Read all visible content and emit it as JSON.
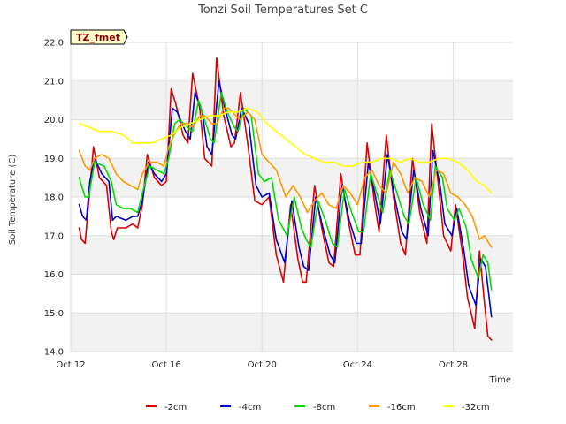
{
  "chart_data": {
    "type": "line",
    "title": "Tonzi Soil Temperatures Set C",
    "xlabel": "Time",
    "ylabel": "Soil Temperature (C)",
    "badge": "TZ_fmet",
    "xlim": [
      12,
      30.5
    ],
    "ylim": [
      14.0,
      22.0
    ],
    "x_ticks": [
      {
        "x": 12,
        "label": "Oct 12"
      },
      {
        "x": 16,
        "label": "Oct 16"
      },
      {
        "x": 20,
        "label": "Oct 20"
      },
      {
        "x": 24,
        "label": "Oct 24"
      },
      {
        "x": 28,
        "label": "Oct 28"
      }
    ],
    "y_ticks": [
      {
        "y": 14.0,
        "label": "14.0"
      },
      {
        "y": 15.0,
        "label": "15.0"
      },
      {
        "y": 16.0,
        "label": "16.0"
      },
      {
        "y": 17.0,
        "label": "17.0"
      },
      {
        "y": 18.0,
        "label": "18.0"
      },
      {
        "y": 19.0,
        "label": "19.0"
      },
      {
        "y": 20.0,
        "label": "20.0"
      },
      {
        "y": 21.0,
        "label": "21.0"
      },
      {
        "y": 22.0,
        "label": "22.0"
      }
    ],
    "legend_position": "bottom-center",
    "series": [
      {
        "name": "-2cm",
        "color": "#dd0000",
        "x": [
          12.35,
          12.45,
          12.6,
          12.8,
          12.95,
          13.2,
          13.5,
          13.7,
          13.8,
          13.95,
          14.3,
          14.6,
          14.8,
          15.0,
          15.2,
          15.5,
          15.8,
          16.0,
          16.2,
          16.4,
          16.7,
          16.9,
          17.1,
          17.4,
          17.6,
          17.9,
          18.1,
          18.4,
          18.7,
          18.85,
          19.1,
          19.4,
          19.7,
          20.0,
          20.3,
          20.6,
          20.9,
          21.2,
          21.5,
          21.7,
          21.85,
          22.2,
          22.5,
          22.8,
          23.0,
          23.3,
          23.6,
          23.9,
          24.1,
          24.4,
          24.7,
          24.9,
          25.2,
          25.5,
          25.8,
          26.0,
          26.3,
          26.6,
          26.9,
          27.1,
          27.4,
          27.6,
          27.9,
          28.1,
          28.4,
          28.6,
          28.9,
          29.1,
          29.3,
          29.45,
          29.6
        ],
        "y": [
          17.2,
          16.9,
          16.8,
          18.2,
          19.3,
          18.5,
          18.3,
          17.1,
          16.9,
          17.2,
          17.2,
          17.3,
          17.2,
          17.8,
          19.1,
          18.5,
          18.3,
          18.4,
          20.8,
          20.4,
          19.6,
          19.4,
          21.2,
          20.3,
          19.0,
          18.8,
          21.6,
          20.1,
          19.3,
          19.4,
          20.7,
          19.4,
          17.9,
          17.8,
          18.0,
          16.5,
          15.8,
          17.8,
          16.4,
          15.8,
          15.8,
          18.3,
          17.2,
          16.3,
          16.2,
          18.6,
          17.4,
          16.5,
          16.5,
          19.4,
          17.9,
          17.1,
          19.6,
          18.0,
          16.8,
          16.5,
          19.0,
          17.6,
          16.8,
          19.9,
          18.2,
          17.0,
          16.6,
          17.8,
          16.5,
          15.4,
          14.6,
          16.6,
          15.3,
          14.4,
          14.3
        ]
      },
      {
        "name": "-4cm",
        "color": "#0000cc",
        "x": [
          12.35,
          12.5,
          12.65,
          12.8,
          13.0,
          13.3,
          13.6,
          13.75,
          13.9,
          14.3,
          14.6,
          14.8,
          15.0,
          15.25,
          15.5,
          15.8,
          16.0,
          16.25,
          16.45,
          16.8,
          17.0,
          17.2,
          17.5,
          17.7,
          17.9,
          18.2,
          18.45,
          18.75,
          18.9,
          19.15,
          19.45,
          19.75,
          20.0,
          20.3,
          20.6,
          20.95,
          21.25,
          21.55,
          21.75,
          21.95,
          22.25,
          22.55,
          22.85,
          23.05,
          23.35,
          23.65,
          23.95,
          24.15,
          24.45,
          24.75,
          24.95,
          25.25,
          25.55,
          25.85,
          26.05,
          26.35,
          26.65,
          26.95,
          27.15,
          27.45,
          27.65,
          27.95,
          28.15,
          28.45,
          28.65,
          28.95,
          29.15,
          29.35,
          29.6
        ],
        "y": [
          17.8,
          17.5,
          17.4,
          18.4,
          19.0,
          18.6,
          18.4,
          17.4,
          17.5,
          17.4,
          17.5,
          17.5,
          17.9,
          18.9,
          18.6,
          18.4,
          18.6,
          20.3,
          20.2,
          19.7,
          19.5,
          20.7,
          20.2,
          19.3,
          19.1,
          21.0,
          20.3,
          19.6,
          19.5,
          20.3,
          19.9,
          18.3,
          18.0,
          18.1,
          16.9,
          16.3,
          17.9,
          16.7,
          16.2,
          16.1,
          18.0,
          17.2,
          16.5,
          16.3,
          18.3,
          17.4,
          16.8,
          16.8,
          18.9,
          18.0,
          17.3,
          19.1,
          18.0,
          17.1,
          16.9,
          18.7,
          17.7,
          17.0,
          19.2,
          18.3,
          17.3,
          17.0,
          17.7,
          16.6,
          15.7,
          15.2,
          16.4,
          16.2,
          14.9
        ]
      },
      {
        "name": "-8cm",
        "color": "#00dd00",
        "x": [
          12.35,
          12.6,
          12.75,
          13.0,
          13.4,
          13.7,
          13.9,
          14.2,
          14.5,
          14.8,
          15.0,
          15.3,
          15.6,
          15.9,
          16.1,
          16.35,
          16.55,
          16.9,
          17.1,
          17.35,
          17.6,
          17.85,
          18.0,
          18.3,
          18.55,
          18.85,
          19.0,
          19.25,
          19.55,
          19.85,
          20.1,
          20.4,
          20.7,
          21.05,
          21.35,
          21.65,
          21.85,
          22.05,
          22.35,
          22.65,
          22.95,
          23.15,
          23.45,
          23.75,
          24.05,
          24.25,
          24.55,
          24.85,
          25.05,
          25.35,
          25.65,
          25.95,
          26.15,
          26.45,
          26.75,
          27.05,
          27.25,
          27.55,
          27.75,
          28.05,
          28.25,
          28.55,
          28.75,
          29.05,
          29.25,
          29.45,
          29.6
        ],
        "y": [
          18.5,
          18.0,
          18.0,
          18.9,
          18.8,
          18.4,
          17.8,
          17.7,
          17.7,
          17.6,
          18.1,
          18.8,
          18.7,
          18.6,
          19.0,
          19.9,
          20.0,
          19.8,
          19.7,
          20.5,
          20.0,
          19.5,
          19.4,
          20.7,
          20.2,
          19.8,
          19.7,
          20.3,
          20.1,
          18.6,
          18.4,
          18.5,
          17.4,
          17.0,
          18.0,
          17.2,
          16.9,
          16.7,
          17.9,
          17.4,
          16.8,
          16.7,
          18.2,
          17.6,
          17.1,
          17.1,
          18.6,
          18.0,
          17.6,
          18.7,
          18.1,
          17.5,
          17.3,
          18.5,
          17.8,
          17.4,
          18.8,
          18.5,
          17.7,
          17.4,
          17.7,
          17.2,
          16.4,
          15.9,
          16.5,
          16.3,
          15.6
        ]
      },
      {
        "name": "-16cm",
        "color": "#ff9900",
        "x": [
          12.35,
          12.6,
          12.8,
          13.0,
          13.3,
          13.6,
          13.9,
          14.2,
          14.5,
          14.8,
          15.0,
          15.3,
          15.6,
          15.9,
          16.1,
          16.4,
          16.6,
          16.9,
          17.1,
          17.4,
          17.6,
          17.9,
          18.1,
          18.4,
          18.6,
          18.9,
          19.1,
          19.4,
          19.7,
          20.0,
          20.3,
          20.6,
          21.0,
          21.3,
          21.6,
          21.9,
          22.2,
          22.5,
          22.8,
          23.1,
          23.4,
          23.7,
          24.0,
          24.3,
          24.6,
          24.9,
          25.2,
          25.5,
          25.8,
          26.1,
          26.4,
          26.7,
          27.0,
          27.3,
          27.6,
          27.9,
          28.2,
          28.5,
          28.8,
          29.1,
          29.3,
          29.6
        ],
        "y": [
          19.2,
          18.8,
          18.7,
          19.0,
          19.1,
          19.0,
          18.6,
          18.4,
          18.3,
          18.2,
          18.6,
          18.9,
          18.9,
          18.8,
          19.3,
          19.7,
          19.9,
          19.9,
          19.8,
          20.1,
          20.1,
          19.9,
          19.9,
          20.3,
          20.3,
          20.1,
          20.0,
          20.2,
          20.0,
          19.1,
          18.9,
          18.7,
          18.0,
          18.3,
          18.0,
          17.6,
          17.9,
          18.1,
          17.8,
          17.7,
          18.3,
          18.1,
          17.8,
          18.5,
          18.7,
          18.3,
          18.1,
          18.9,
          18.6,
          18.1,
          18.5,
          18.4,
          18.0,
          18.7,
          18.6,
          18.1,
          18.0,
          17.8,
          17.5,
          16.9,
          17.0,
          16.7
        ]
      },
      {
        "name": "-32cm",
        "color": "#ffff00",
        "x": [
          12.35,
          12.8,
          13.2,
          13.7,
          14.2,
          14.6,
          15.0,
          15.4,
          15.8,
          16.2,
          16.6,
          17.0,
          17.4,
          17.8,
          18.2,
          18.6,
          19.0,
          19.4,
          19.8,
          20.2,
          20.6,
          21.0,
          21.4,
          21.8,
          22.2,
          22.6,
          23.0,
          23.4,
          23.8,
          24.2,
          24.6,
          25.0,
          25.4,
          25.8,
          26.2,
          26.6,
          27.0,
          27.4,
          27.8,
          28.2,
          28.6,
          29.0,
          29.3,
          29.6
        ],
        "y": [
          19.9,
          19.8,
          19.7,
          19.7,
          19.6,
          19.4,
          19.4,
          19.4,
          19.5,
          19.6,
          19.8,
          19.9,
          20.0,
          20.1,
          20.1,
          20.2,
          20.2,
          20.3,
          20.2,
          19.9,
          19.7,
          19.5,
          19.3,
          19.1,
          19.0,
          18.9,
          18.9,
          18.8,
          18.8,
          18.9,
          18.9,
          19.0,
          19.0,
          18.9,
          19.0,
          18.9,
          18.9,
          19.0,
          19.0,
          18.9,
          18.7,
          18.4,
          18.3,
          18.1
        ]
      }
    ]
  }
}
